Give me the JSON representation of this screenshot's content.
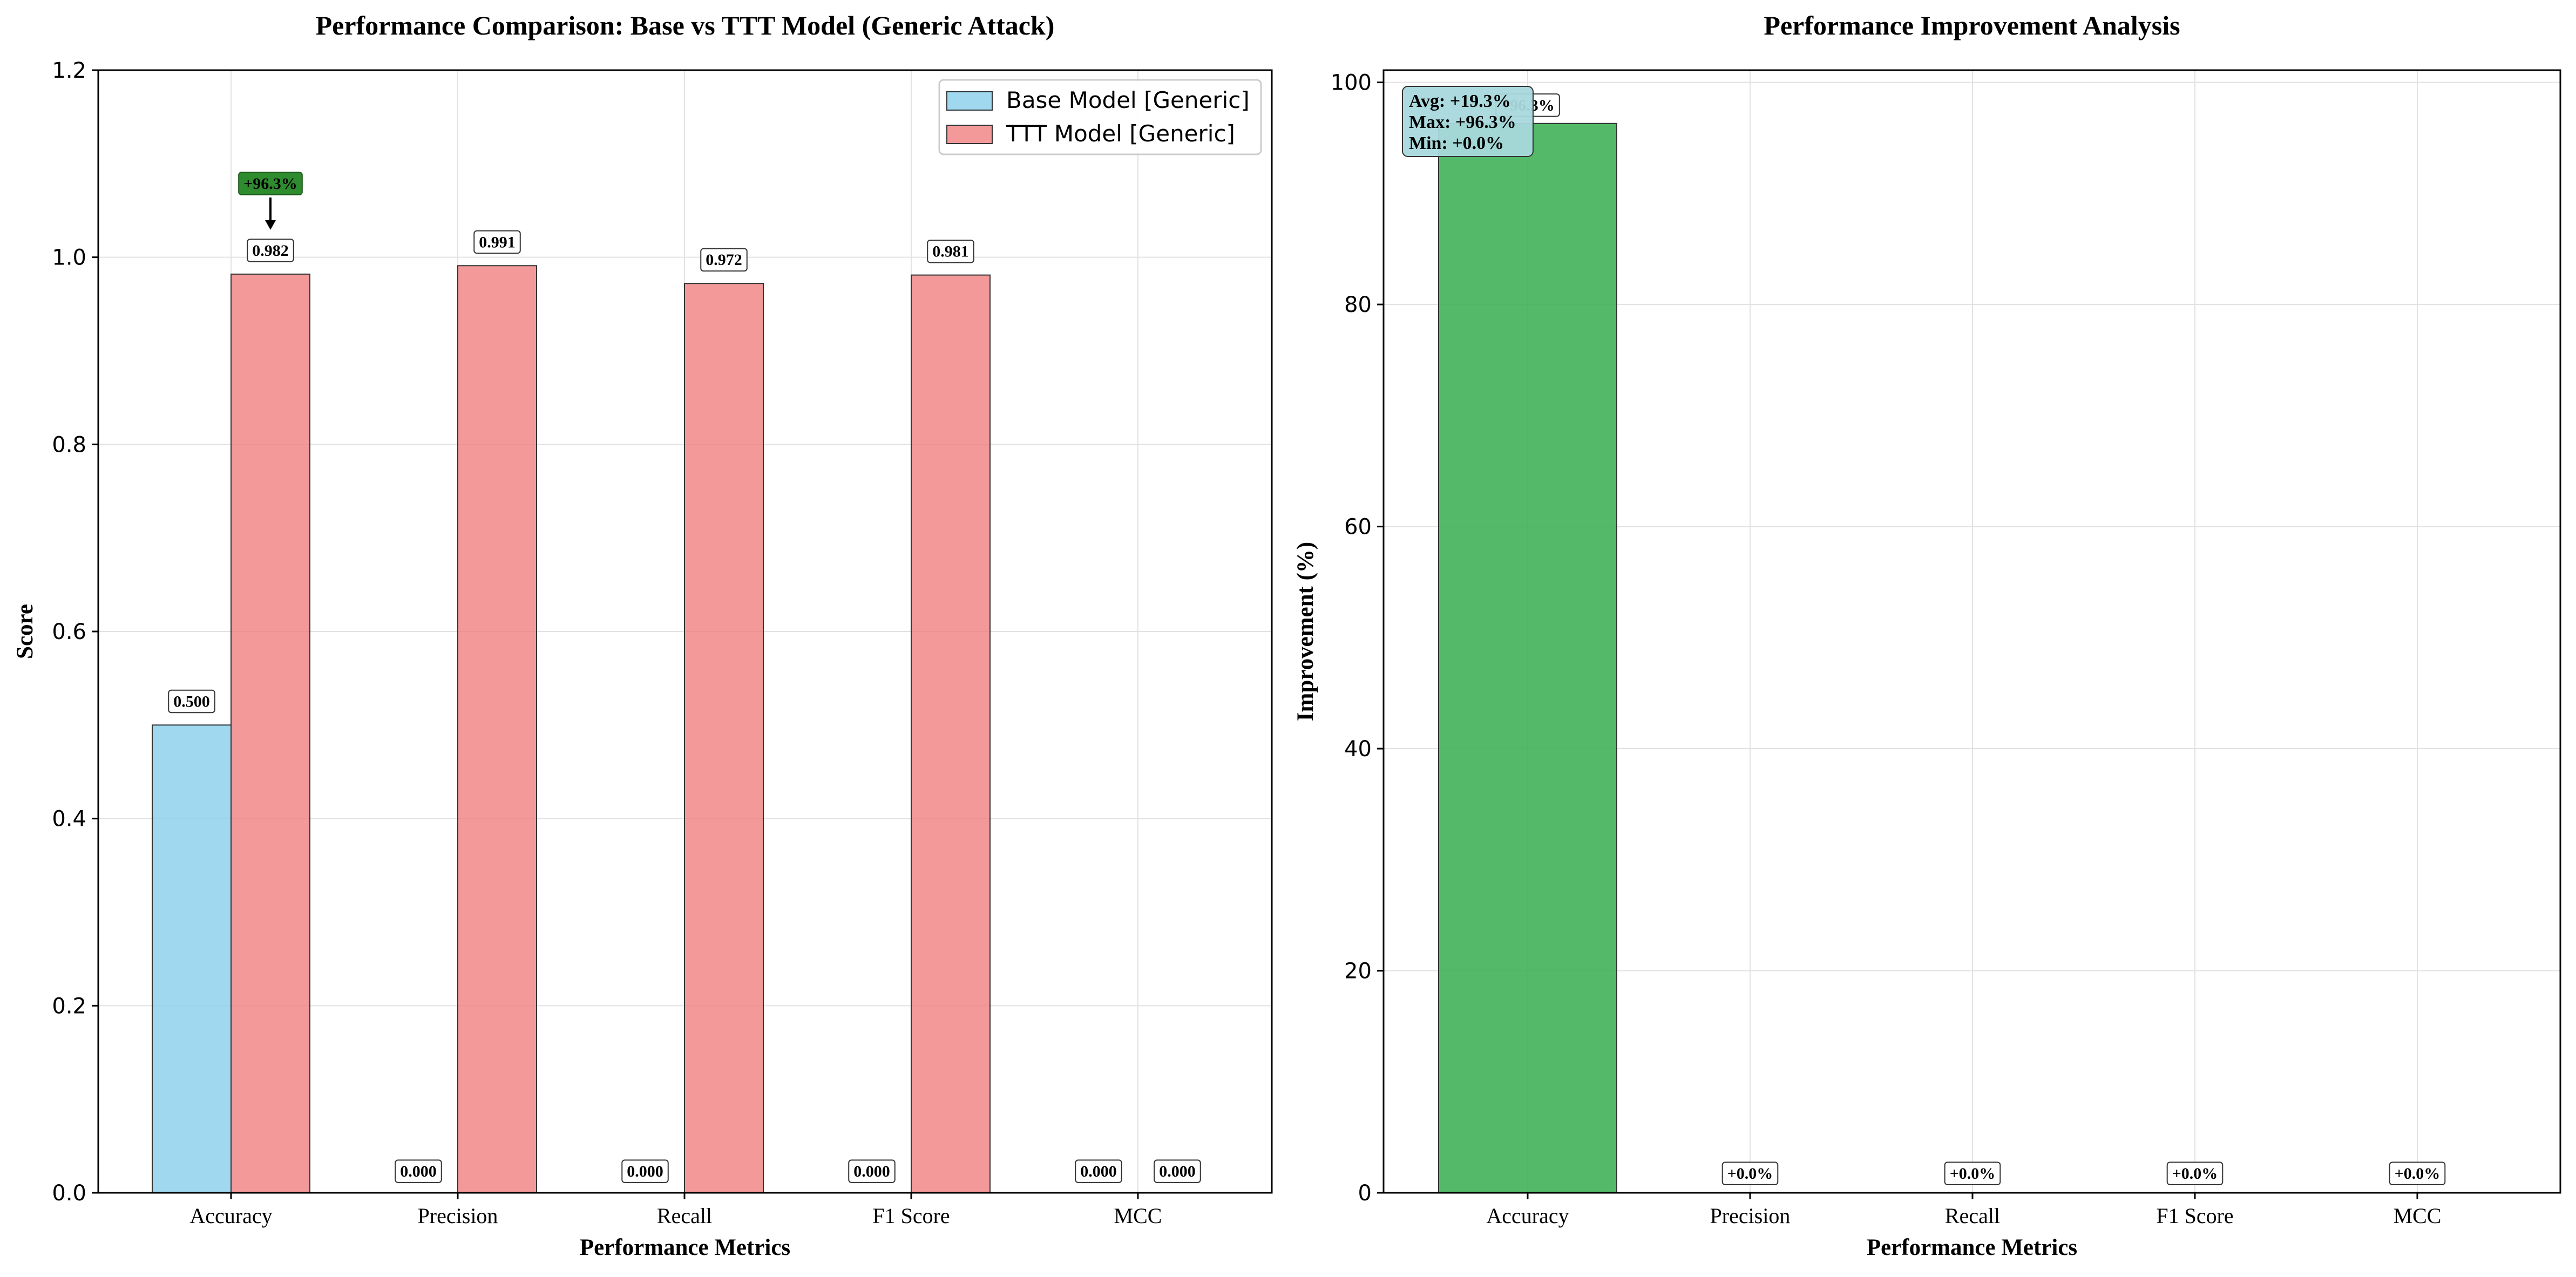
{
  "chart_data": [
    {
      "type": "bar",
      "title": "Performance Comparison: Base vs TTT Model (Generic Attack)",
      "xlabel": "Performance Metrics",
      "ylabel": "Score",
      "ylim": [
        0,
        1.2
      ],
      "yticks": [
        "0.0",
        "0.2",
        "0.4",
        "0.6",
        "0.8",
        "1.0",
        "1.2"
      ],
      "grid": true,
      "legend_position": "top-right",
      "categories": [
        "Accuracy",
        "Precision",
        "Recall",
        "F1 Score",
        "MCC"
      ],
      "series": [
        {
          "name": "Base Model [Generic]",
          "color": "#87ceeb",
          "values": [
            0.5,
            0.0,
            0.0,
            0.0,
            0.0
          ],
          "labels": [
            "0.500",
            "0.000",
            "0.000",
            "0.000",
            "0.000"
          ]
        },
        {
          "name": "TTT Model [Generic]",
          "color": "#f08080",
          "values": [
            0.982,
            0.991,
            0.972,
            0.981,
            0.0
          ],
          "labels": [
            "0.982",
            "0.991",
            "0.972",
            "0.981",
            "0.000"
          ]
        }
      ],
      "annotations": [
        {
          "text": "+96.3%",
          "category": "Accuracy",
          "series": "TTT Model [Generic]",
          "color": "#2e8b2e"
        }
      ]
    },
    {
      "type": "bar",
      "title": "Performance Improvement Analysis",
      "xlabel": "Performance Metrics",
      "ylabel": "Improvement (%)",
      "ylim": [
        0,
        101.1
      ],
      "yticks": [
        "0",
        "20",
        "40",
        "60",
        "80",
        "100"
      ],
      "grid": true,
      "categories": [
        "Accuracy",
        "Precision",
        "Recall",
        "F1 Score",
        "MCC"
      ],
      "values": [
        96.3,
        0.0,
        0.0,
        0.0,
        0.0
      ],
      "labels": [
        "+96.3%",
        "+0.0%",
        "+0.0%",
        "+0.0%",
        "+0.0%"
      ],
      "color": "#3cb054",
      "stats_box": [
        "Avg: +19.3%",
        "Max: +96.3%",
        "Min: +0.0%"
      ],
      "stats_box_color": "#a8d8dc"
    }
  ]
}
